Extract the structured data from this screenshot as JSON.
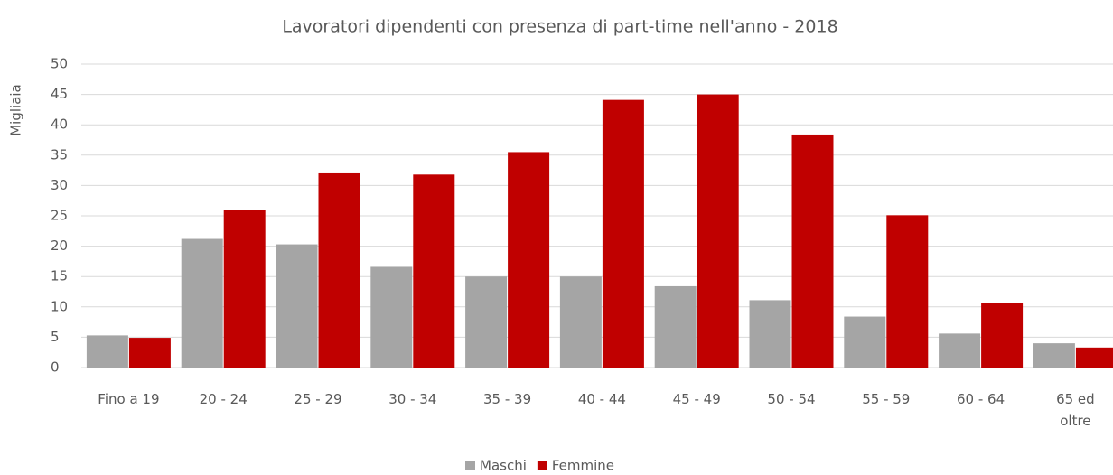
{
  "chart_data": {
    "type": "bar",
    "title": "Lavoratori dipendenti  con presenza di part-time  nell'anno  - 2018",
    "y_label": "Migliaia",
    "categories": [
      "Fino a 19",
      "20 - 24",
      "25 - 29",
      "30 - 34",
      "35 - 39",
      "40 - 44",
      "45 - 49",
      "50 - 54",
      "55 - 59",
      "60 - 64",
      "65 ed oltre"
    ],
    "series": [
      {
        "name": "Maschi",
        "color": "#a5a5a5",
        "values": [
          5.3,
          21.2,
          20.3,
          16.6,
          15,
          15,
          13.4,
          11.1,
          8.4,
          5.6,
          4
        ]
      },
      {
        "name": "Femmine",
        "color": "#c00000",
        "values": [
          4.9,
          26,
          32,
          31.8,
          35.5,
          44.1,
          45,
          38.4,
          25.1,
          10.7,
          3.3
        ]
      }
    ],
    "ylim": [
      0,
      50
    ],
    "yticks": [
      0,
      5,
      10,
      15,
      20,
      25,
      30,
      35,
      40,
      45,
      50
    ],
    "grid": true,
    "legend": "bottom"
  }
}
